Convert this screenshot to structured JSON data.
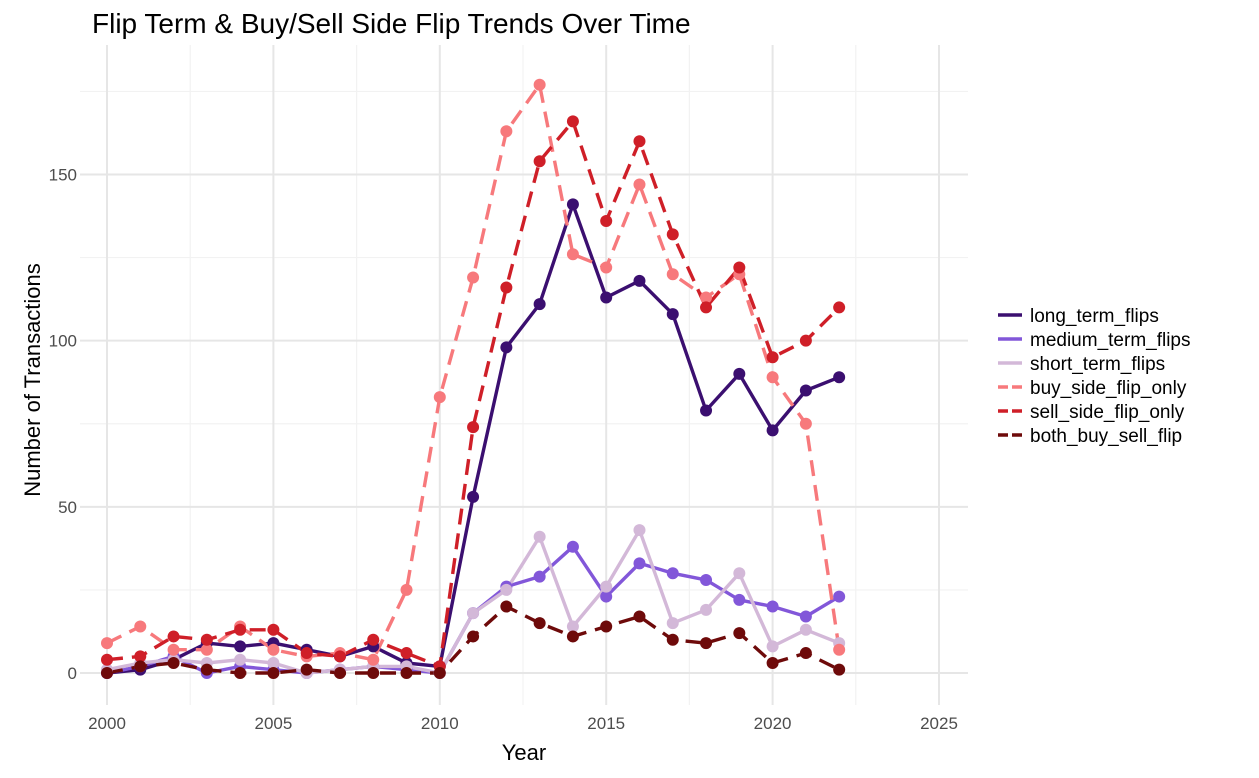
{
  "chart_data": {
    "type": "line",
    "title": "Flip Term & Buy/Sell Side Flip Trends Over Time",
    "xlabel": "Year",
    "ylabel": "Number of Transactions",
    "xlim": [
      2000,
      2025
    ],
    "ylim": [
      0,
      180
    ],
    "x_ticks": [
      2000,
      2005,
      2010,
      2015,
      2020,
      2025
    ],
    "y_ticks": [
      0,
      50,
      100,
      150
    ],
    "grid": true,
    "legend_position": "right",
    "x": [
      2000,
      2001,
      2002,
      2003,
      2004,
      2005,
      2006,
      2007,
      2008,
      2009,
      2010,
      2011,
      2012,
      2013,
      2014,
      2015,
      2016,
      2017,
      2018,
      2019,
      2020,
      2021,
      2022
    ],
    "series": [
      {
        "name": "long_term_flips",
        "color": "#3b0f70",
        "dash": "solid",
        "values": [
          0,
          1,
          4,
          9,
          8,
          9,
          7,
          5,
          8,
          3,
          2,
          53,
          98,
          111,
          141,
          113,
          118,
          108,
          79,
          90,
          73,
          85,
          89
        ]
      },
      {
        "name": "medium_term_flips",
        "color": "#8257d9",
        "dash": "solid",
        "values": [
          0,
          2,
          5,
          0,
          2,
          1,
          0,
          1,
          2,
          1,
          0,
          18,
          26,
          29,
          38,
          23,
          33,
          30,
          28,
          22,
          20,
          17,
          23
        ]
      },
      {
        "name": "short_term_flips",
        "color": "#d3b8d8",
        "dash": "solid",
        "values": [
          1,
          3,
          4,
          3,
          4,
          3,
          0,
          1,
          2,
          2,
          0,
          18,
          25,
          41,
          14,
          26,
          43,
          15,
          19,
          30,
          8,
          13,
          9
        ]
      },
      {
        "name": "buy_side_flip_only",
        "color": "#f7797c",
        "dash": "dashed",
        "values": [
          9,
          14,
          7,
          7,
          14,
          7,
          5,
          6,
          4,
          25,
          83,
          119,
          163,
          177,
          126,
          122,
          147,
          120,
          113,
          120,
          89,
          75,
          7
        ]
      },
      {
        "name": "sell_side_flip_only",
        "color": "#cf1f28",
        "dash": "dashed",
        "values": [
          4,
          5,
          11,
          10,
          13,
          13,
          6,
          5,
          10,
          6,
          2,
          74,
          116,
          154,
          166,
          136,
          160,
          132,
          110,
          122,
          95,
          100,
          110
        ]
      },
      {
        "name": "both_buy_sell_flip",
        "color": "#6e0a0a",
        "dash": "dashed",
        "values": [
          0,
          2,
          3,
          1,
          0,
          0,
          1,
          0,
          0,
          0,
          0,
          11,
          20,
          15,
          11,
          14,
          17,
          10,
          9,
          12,
          3,
          6,
          1
        ]
      }
    ]
  }
}
